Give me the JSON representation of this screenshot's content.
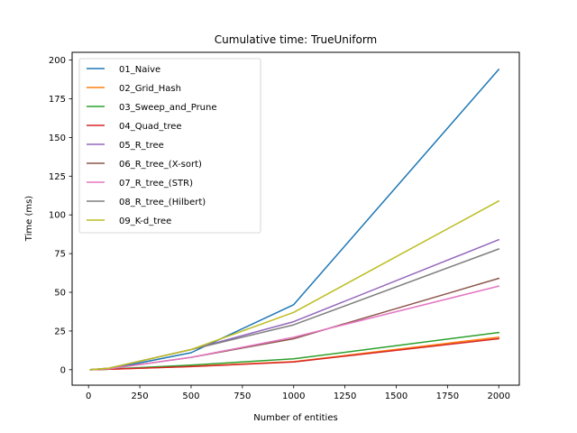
{
  "chart_data": {
    "type": "line",
    "title": "Cumulative time: TrueUniform",
    "xlabel": "Number of entities",
    "ylabel": "Time (ms)",
    "xlim": [
      -80,
      2100
    ],
    "ylim": [
      -10,
      205
    ],
    "xticks": [
      0,
      250,
      500,
      750,
      1000,
      1250,
      1500,
      1750,
      2000
    ],
    "yticks": [
      0,
      25,
      50,
      75,
      100,
      125,
      150,
      175,
      200
    ],
    "grid": false,
    "legend_position": "top-left",
    "x": [
      10,
      100,
      500,
      1000,
      2000
    ],
    "series": [
      {
        "name": "01_Naive",
        "color": "#1f77b4",
        "values": [
          0,
          0.5,
          11,
          42,
          194
        ]
      },
      {
        "name": "02_Grid_Hash",
        "color": "#ff7f0e",
        "values": [
          0,
          0.3,
          2.2,
          5.2,
          21
        ]
      },
      {
        "name": "03_Sweep_and_Prune",
        "color": "#2ca02c",
        "values": [
          0,
          0.4,
          3,
          7,
          24
        ]
      },
      {
        "name": "04_Quad_tree",
        "color": "#d62728",
        "values": [
          0,
          0.3,
          2,
          5,
          20
        ]
      },
      {
        "name": "05_R_tree",
        "color": "#9467bd",
        "values": [
          0,
          1,
          13,
          31,
          84
        ]
      },
      {
        "name": "06_R_tree_(X-sort)",
        "color": "#8c564b",
        "values": [
          0,
          0.6,
          8,
          20,
          59
        ]
      },
      {
        "name": "07_R_tree_(STR)",
        "color": "#e377c2",
        "values": [
          0,
          0.6,
          8,
          21,
          54
        ]
      },
      {
        "name": "08_R_tree_(Hilbert)",
        "color": "#7f7f7f",
        "values": [
          0,
          1,
          13,
          29,
          78
        ]
      },
      {
        "name": "09_K-d_tree",
        "color": "#bcbd22",
        "values": [
          0,
          1,
          13,
          37,
          109
        ]
      }
    ]
  }
}
